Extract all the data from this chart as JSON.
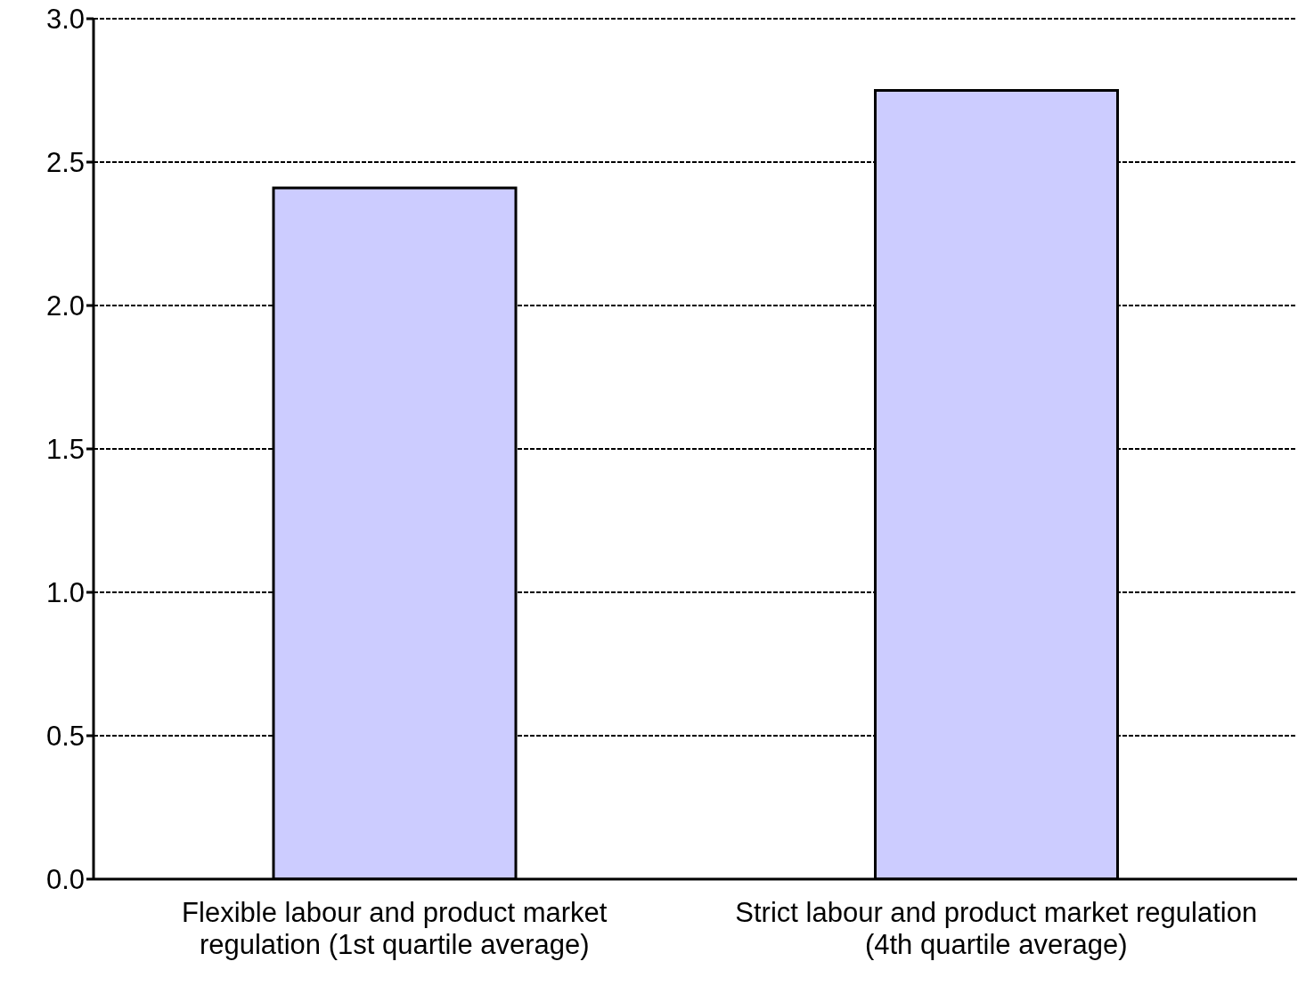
{
  "chart_data": {
    "type": "bar",
    "categories": [
      "Flexible labour and product market regulation (1st quartile average)",
      "Strict labour and product market regulation (4th quartile average)"
    ],
    "values": [
      2.41,
      2.75
    ],
    "color": "#ccccff",
    "ylim": [
      0,
      3
    ],
    "yticks": [
      {
        "value": 0,
        "label": "0.0"
      },
      {
        "value": 0.5,
        "label": "0.5"
      },
      {
        "value": 1,
        "label": "1.0"
      },
      {
        "value": 1.5,
        "label": "1.5"
      },
      {
        "value": 2,
        "label": "2.0"
      },
      {
        "value": 2.5,
        "label": "2.5"
      },
      {
        "value": 3,
        "label": "3.0"
      }
    ],
    "grid": "y",
    "legend": false
  }
}
